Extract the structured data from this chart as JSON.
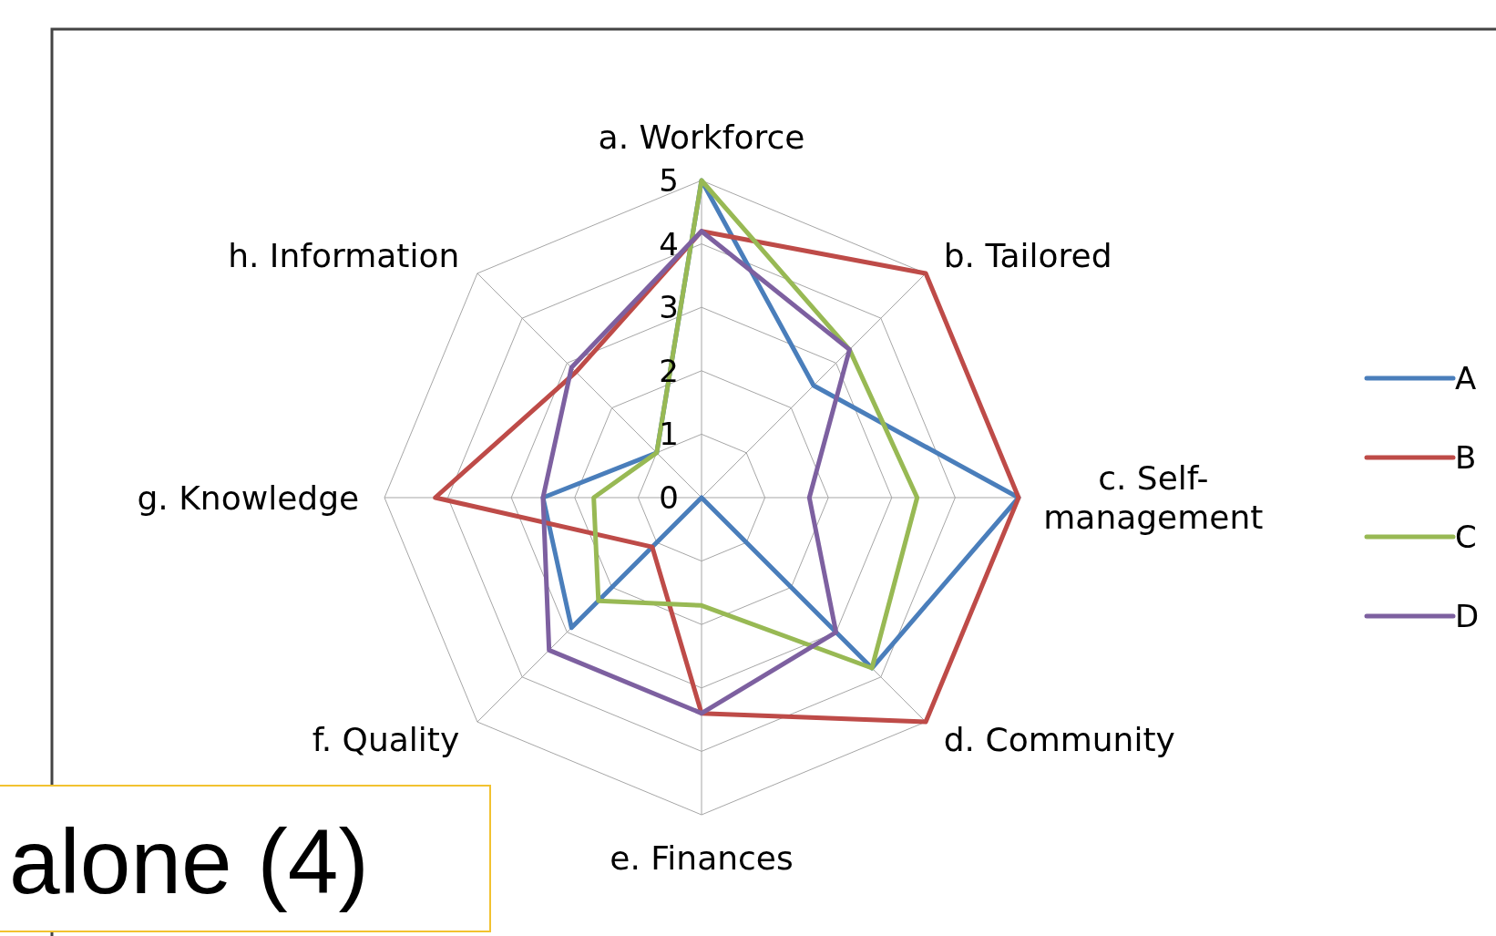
{
  "chart_data": {
    "type": "radar",
    "categories": [
      "a. Workforce",
      "b. Tailored",
      "c. Self-management",
      "d. Community",
      "e. Finances",
      "f. Quality",
      "g. Knowledge",
      "h.  Information"
    ],
    "series": [
      {
        "name": "A",
        "color": "#4a7ebb",
        "values": [
          5,
          2.5,
          5,
          3.8,
          0,
          2.9,
          2.5,
          1
        ]
      },
      {
        "name": "B",
        "color": "#be4b48",
        "values": [
          4.2,
          5,
          5,
          5,
          3.4,
          1.1,
          4.2,
          2.8
        ]
      },
      {
        "name": "C",
        "color": "#98b954",
        "values": [
          5,
          3.3,
          3.4,
          3.8,
          1.7,
          2.3,
          1.7,
          1
        ]
      },
      {
        "name": "D",
        "color": "#7d60a0",
        "values": [
          4.2,
          3.3,
          1.7,
          3,
          3.4,
          3.4,
          2.5,
          2.9
        ]
      }
    ],
    "ylim": [
      0,
      5
    ],
    "yticks": [
      0,
      1,
      2,
      3,
      4,
      5
    ],
    "grid": true,
    "legend": "right",
    "annotations": [
      "alone (4)"
    ]
  }
}
